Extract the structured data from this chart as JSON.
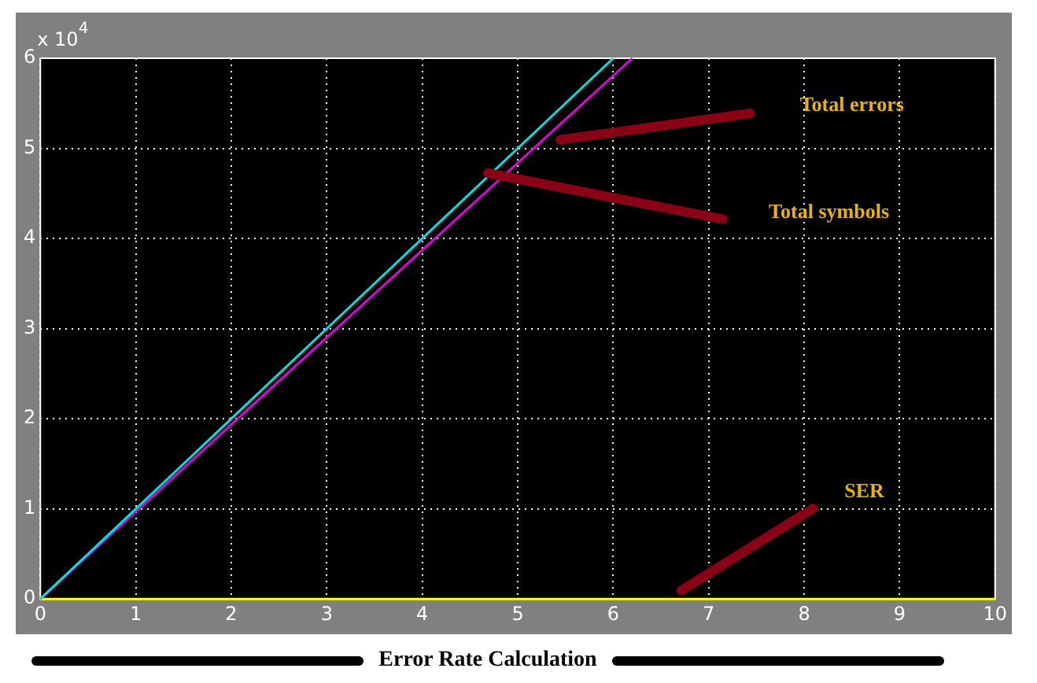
{
  "chart_data": {
    "type": "line",
    "title": "Error Rate Calculation",
    "series": [
      {
        "color": "#00e0e0",
        "x": [
          0,
          6
        ],
        "values": [
          0,
          6
        ]
      },
      {
        "color": "#e000e0",
        "x": [
          0,
          6.2
        ],
        "values": [
          0,
          6
        ]
      },
      {
        "color": "#ffff00",
        "x": [
          0,
          10
        ],
        "values": [
          0,
          0
        ]
      }
    ],
    "xlim": [
      0,
      10
    ],
    "xticks": [
      0,
      1,
      2,
      3,
      4,
      5,
      6,
      7,
      8,
      9,
      10
    ],
    "ylim": [
      0,
      6
    ],
    "yticks": [
      0,
      1,
      2,
      3,
      4,
      5,
      6
    ],
    "grid": true,
    "legend": false,
    "marker": "none",
    "annotations": [
      "x 10$^{4}$",
      "Total errors",
      "Total symbols",
      "SER"
    ]
  }
}
